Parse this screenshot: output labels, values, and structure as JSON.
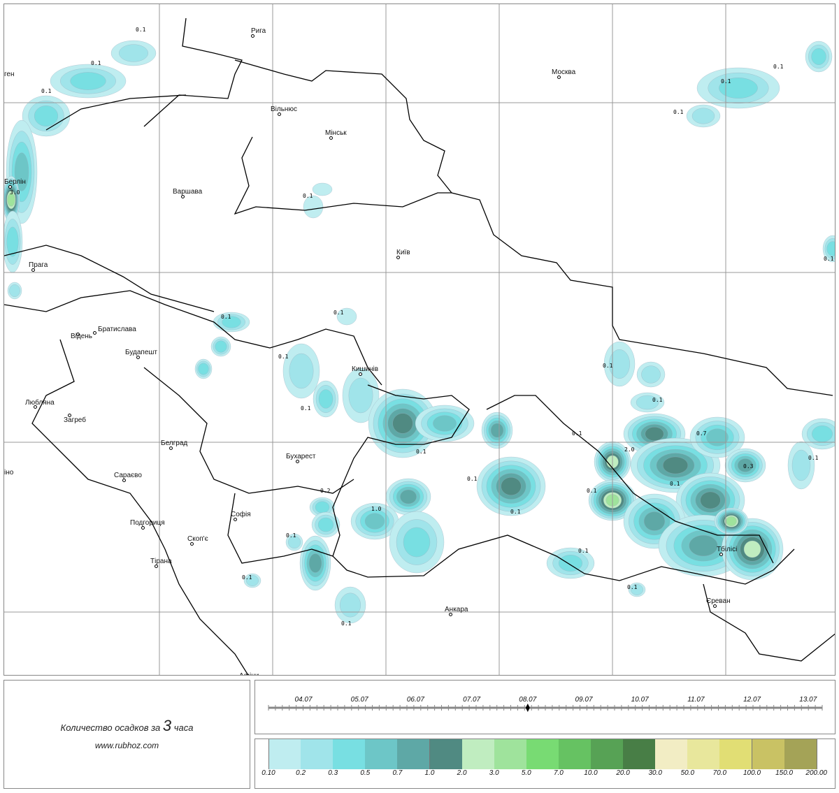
{
  "map": {
    "cities": [
      "Рига",
      "Москва",
      "Вільнюс",
      "Мінськ",
      "Берлін",
      "Варшава",
      "Київ",
      "Прага",
      "Братислава",
      "Відень",
      "Будапешт",
      "Кишинів",
      "Любляна",
      "Загреб",
      "Белград",
      "Бухарест",
      "Сараєво",
      "Софія",
      "Подгориця",
      "Скоп'є",
      "Тірана",
      "Анкара",
      "Тбілісі",
      "Єреван",
      "Афіни",
      "ген",
      "іно"
    ],
    "values": [
      "0.1",
      "0.1",
      "0.1",
      "3.0",
      "0.1",
      "0.1",
      "0.1",
      "0.1",
      "0.1",
      "0.1",
      "0.1",
      "0.1",
      "0.1",
      "0.2",
      "0.1",
      "1.0",
      "0.1",
      "0.1",
      "0.1",
      "0.1",
      "0.1",
      "0.1",
      "2.0",
      "0.7",
      "0.3",
      "0.1",
      "0.1",
      "0.1",
      "0.1",
      "0.1",
      "0.1",
      "0.1"
    ]
  },
  "info": {
    "title_prefix": "Количество осадков за",
    "hours": "3",
    "title_suffix": "часа",
    "website": "www.rubhoz.com"
  },
  "timeline": {
    "dates": [
      "04.07",
      "05.07",
      "06.07",
      "07.07",
      "08.07",
      "09.07",
      "10.07",
      "11.07",
      "12.07",
      "13.07"
    ],
    "current": "08.07"
  },
  "legend": {
    "labels": [
      "0.10",
      "0.2",
      "0.3",
      "0.5",
      "0.7",
      "1.0",
      "2.0",
      "3.0",
      "5.0",
      "7.0",
      "10.0",
      "20.0",
      "30.0",
      "50.0",
      "70.0",
      "100.0",
      "150.0",
      "200.00"
    ],
    "colors": [
      "#bfedf0",
      "#a0e4ea",
      "#78dfe2",
      "#6dc6c7",
      "#5ea8a6",
      "#508a82",
      "#c0edc0",
      "#9fe39c",
      "#78db73",
      "#66c262",
      "#57a255",
      "#487e46",
      "#f2edc4",
      "#e8e79c",
      "#e1de74",
      "#c9c264",
      "#a4a357"
    ]
  }
}
